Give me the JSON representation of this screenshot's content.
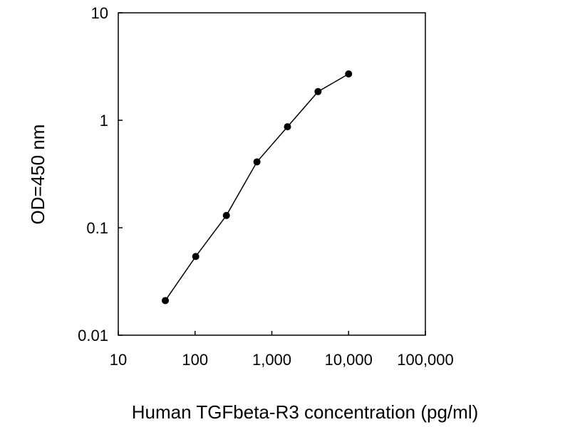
{
  "chart_data": {
    "type": "line",
    "xlabel": "Human TGFbeta-R3 concentration (pg/ml)",
    "ylabel": "OD=450 nm",
    "xscale": "log",
    "yscale": "log",
    "xlim": [
      10,
      100000
    ],
    "ylim": [
      0.01,
      10
    ],
    "x_ticks": [
      10,
      100,
      1000,
      10000,
      100000
    ],
    "x_tick_labels": [
      "10",
      "100",
      "1,000",
      "10,000",
      "100,000"
    ],
    "y_ticks": [
      0.01,
      0.1,
      1,
      10
    ],
    "y_tick_labels": [
      "0.01",
      "0.1",
      "1",
      "10"
    ],
    "grid": false,
    "legend": "none",
    "series": [
      {
        "x": [
          41,
          102,
          256,
          640,
          1600,
          4000,
          10000
        ],
        "y": [
          0.021,
          0.054,
          0.13,
          0.41,
          0.87,
          1.85,
          2.7
        ],
        "color": "#000000"
      }
    ]
  }
}
